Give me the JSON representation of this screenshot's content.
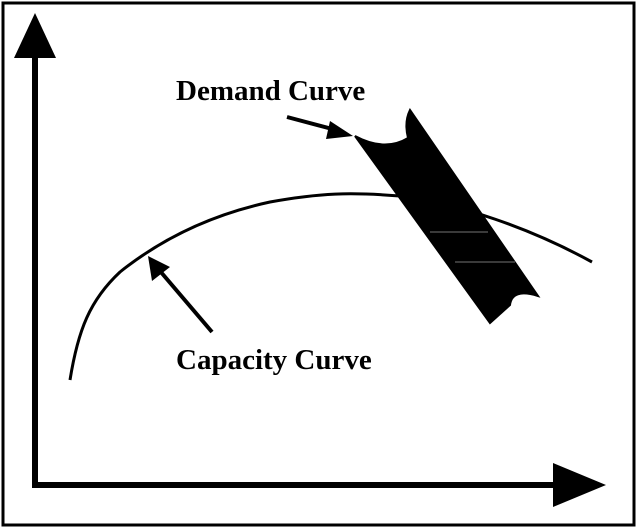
{
  "labels": {
    "demand": "Demand Curve",
    "capacity": "Capacity Curve"
  },
  "colors": {
    "ink": "#000000",
    "background": "#ffffff"
  },
  "icons": {
    "y_axis_arrow": "arrow-up-icon",
    "x_axis_arrow": "arrow-right-icon",
    "demand_pointer": "pointer-arrow-icon",
    "capacity_pointer": "pointer-arrow-icon"
  }
}
